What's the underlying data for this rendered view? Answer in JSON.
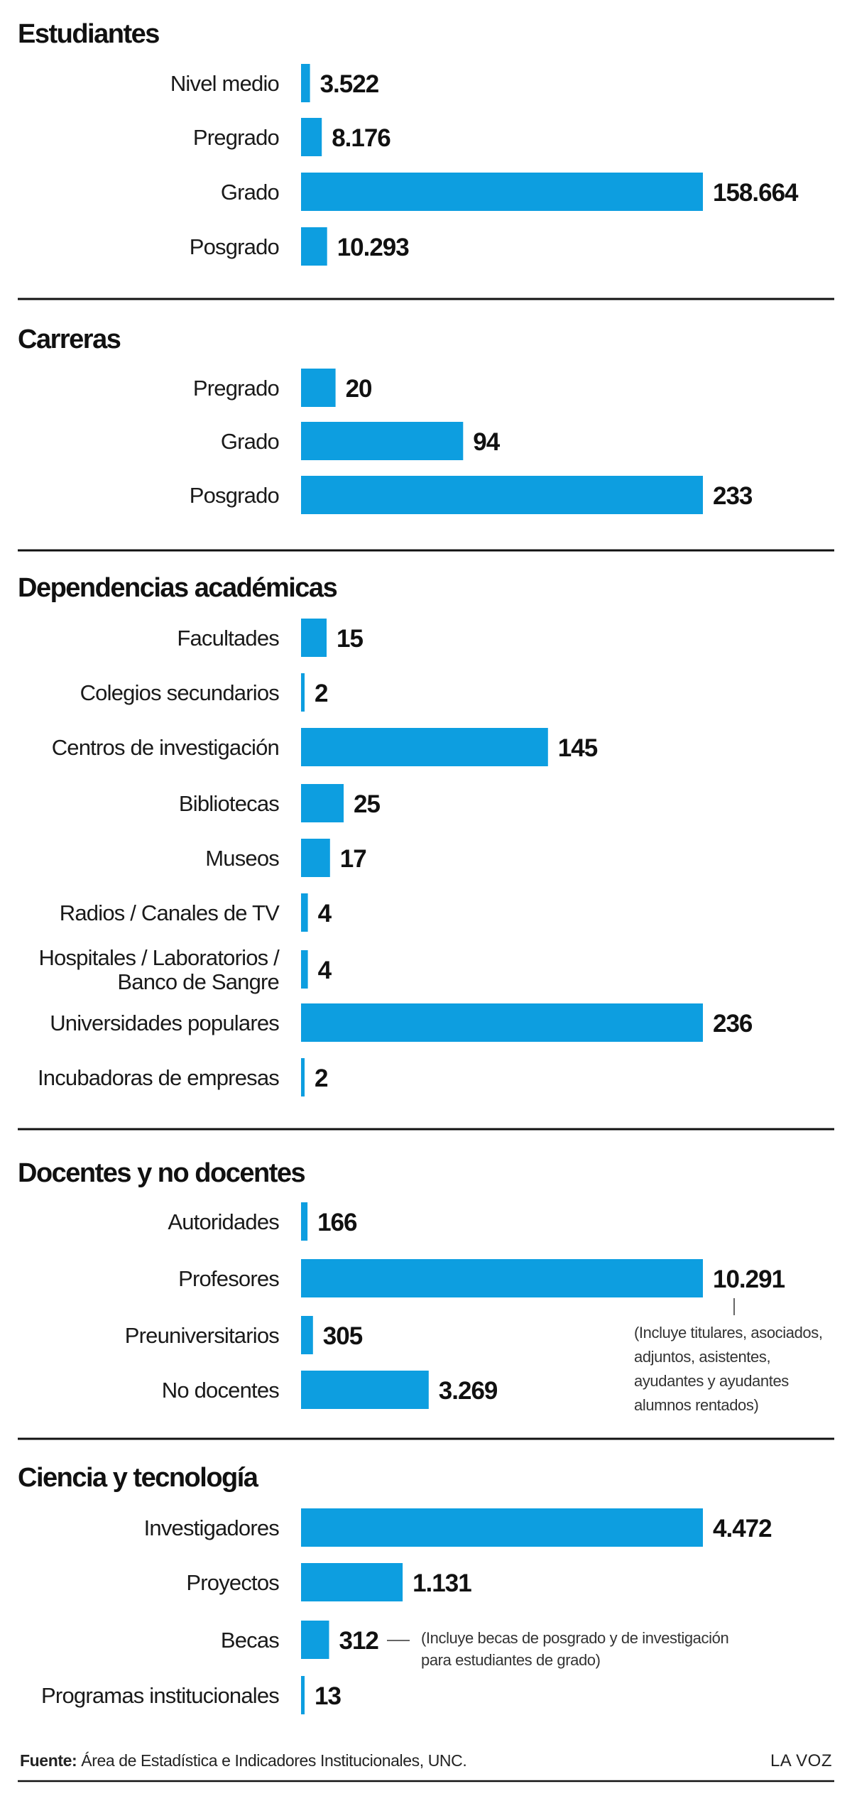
{
  "colors": {
    "bar": "#0d9ee0",
    "text": "#111111",
    "rule": "#111111",
    "note": "#333333"
  },
  "chart_data": [
    {
      "type": "bar",
      "title": "Estudiantes",
      "categories": [
        "Nivel medio",
        "Pregrado",
        "Grado",
        "Posgrado"
      ],
      "values": [
        3522,
        8176,
        158664,
        10293
      ],
      "value_labels": [
        "3.522",
        "8.176",
        "158.664",
        "10.293"
      ],
      "xlim": [
        0,
        158664
      ]
    },
    {
      "type": "bar",
      "title": "Carreras",
      "categories": [
        "Pregrado",
        "Grado",
        "Posgrado"
      ],
      "values": [
        20,
        94,
        233
      ],
      "value_labels": [
        "20",
        "94",
        "233"
      ],
      "xlim": [
        0,
        233
      ]
    },
    {
      "type": "bar",
      "title": "Dependencias académicas",
      "categories": [
        "Facultades",
        "Colegios secundarios",
        "Centros de investigación",
        "Bibliotecas",
        "Museos",
        "Radios / Canales de TV",
        "Hospitales / Laboratorios / Banco de Sangre",
        "Universidades populares",
        "Incubadoras de empresas"
      ],
      "category_lines": [
        [
          "Facultades"
        ],
        [
          "Colegios secundarios"
        ],
        [
          "Centros de investigación"
        ],
        [
          "Bibliotecas"
        ],
        [
          "Museos"
        ],
        [
          "Radios / Canales de TV"
        ],
        [
          "Hospitales / Laboratorios /",
          "Banco de Sangre"
        ],
        [
          "Universidades populares"
        ],
        [
          "Incubadoras de empresas"
        ]
      ],
      "values": [
        15,
        2,
        145,
        25,
        17,
        4,
        4,
        236,
        2
      ],
      "value_labels": [
        "15",
        "2",
        "145",
        "25",
        "17",
        "4",
        "4",
        "236",
        "2"
      ],
      "xlim": [
        0,
        236
      ]
    },
    {
      "type": "bar",
      "title": "Docentes y no docentes",
      "categories": [
        "Autoridades",
        "Profesores",
        "Preuniversitarios",
        "No docentes"
      ],
      "values": [
        166,
        10291,
        305,
        3269
      ],
      "value_labels": [
        "166",
        "10.291",
        "305",
        "3.269"
      ],
      "xlim": [
        0,
        10291
      ],
      "note": {
        "category": "Profesores",
        "lines": [
          "(Incluye titulares, asociados,",
          "adjuntos, asistentes,",
          "ayudantes y ayudantes",
          "alumnos rentados)"
        ]
      }
    },
    {
      "type": "bar",
      "title": "Ciencia y tecnología",
      "categories": [
        "Investigadores",
        "Proyectos",
        "Becas",
        "Programas institucionales"
      ],
      "values": [
        4472,
        1131,
        312,
        13
      ],
      "value_labels": [
        "4.472",
        "1.131",
        "312",
        "13"
      ],
      "xlim": [
        0,
        4472
      ],
      "note": {
        "category": "Becas",
        "lines": [
          "(Incluye becas de posgrado y de investigación",
          "para estudiantes de grado)"
        ]
      }
    }
  ],
  "footer": {
    "source_label": "Fuente:",
    "source_text": "Área de Estadística e Indicadores Institucionales, UNC.",
    "brand": "LA VOZ"
  }
}
